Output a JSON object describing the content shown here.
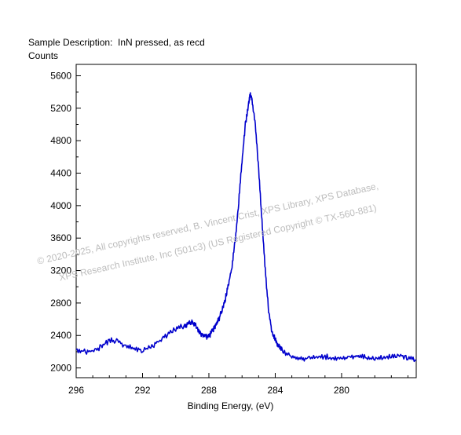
{
  "header": {
    "title": "Sample Description:  InN pressed, as recd",
    "ylabel": "Counts"
  },
  "watermark": {
    "line1": "©  2020-2025,  All copyrights reserved,   B. Vincent Crist,  XPS Library, XPS Database,",
    "line2": "XPS Research Institute, Inc (501c3)   (US Registered Copyright © TX-560-881)"
  },
  "chart_data": {
    "type": "line",
    "title": "Sample Description:  InN pressed, as recd",
    "xlabel": "Binding Energy, (eV)",
    "ylabel": "Counts",
    "xlim": [
      296,
      275.5
    ],
    "ylim": [
      1880,
      5740
    ],
    "x_reversed": true,
    "x_ticks": [
      296,
      292,
      288,
      284,
      280
    ],
    "x_tick_labels": [
      "296",
      "292",
      "288",
      "284",
      "280"
    ],
    "y_ticks": [
      2000,
      2400,
      2800,
      3200,
      3600,
      4000,
      4400,
      4800,
      5200,
      5600
    ],
    "y_tick_labels": [
      "2000",
      "2400",
      "2800",
      "3200",
      "3600",
      "4000",
      "4400",
      "4800",
      "5200",
      "5600"
    ],
    "grid": false,
    "colors": {
      "line": "#0000cc",
      "axis": "#000000"
    },
    "series": [
      {
        "x": [
          296,
          295.5,
          295,
          294.5,
          294,
          293.5,
          293,
          292.5,
          292,
          291.5,
          291,
          290.5,
          290,
          289.5,
          289.2,
          289,
          288.8,
          288.5,
          288.2,
          288,
          287.8,
          287.6,
          287.4,
          287.2,
          287,
          286.8,
          286.6,
          286.4,
          286.2,
          286,
          285.8,
          285.6,
          285.5,
          285.4,
          285.2,
          285,
          284.8,
          284.6,
          284.4,
          284.2,
          284,
          283.8,
          283.5,
          283,
          282.5,
          282,
          281.5,
          281,
          280.5,
          280,
          279.5,
          279,
          278.5,
          278,
          277.5,
          277,
          276.5,
          276,
          275.5
        ],
        "y": [
          2230,
          2200,
          2210,
          2260,
          2340,
          2330,
          2260,
          2240,
          2220,
          2260,
          2330,
          2410,
          2480,
          2520,
          2550,
          2560,
          2520,
          2420,
          2380,
          2390,
          2450,
          2520,
          2600,
          2720,
          2860,
          3050,
          3250,
          3600,
          4050,
          4550,
          5000,
          5260,
          5380,
          5300,
          5000,
          4450,
          3800,
          3200,
          2700,
          2450,
          2350,
          2270,
          2200,
          2150,
          2120,
          2110,
          2130,
          2140,
          2120,
          2110,
          2130,
          2150,
          2130,
          2110,
          2140,
          2130,
          2160,
          2130,
          2100
        ]
      }
    ]
  }
}
